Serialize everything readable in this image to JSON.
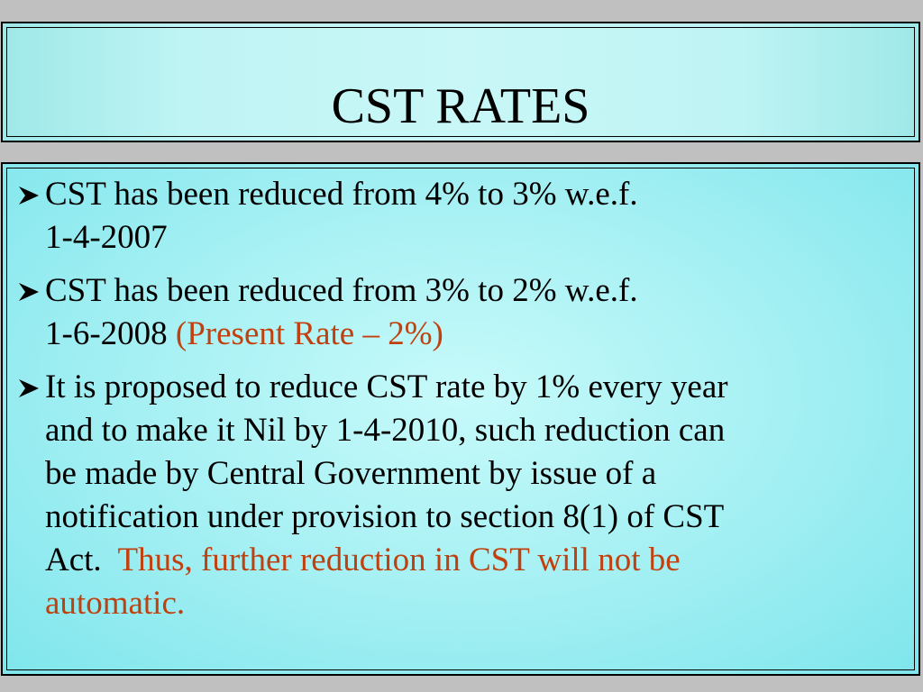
{
  "title": "CST RATES",
  "accent_color": "#c0410f",
  "bullet_icon": "arrow-bullet-icon",
  "bullets": [
    {
      "line1": "CST has been reduced from 4% to 3% w.e.f.",
      "line2": "1-4-2007"
    },
    {
      "line1": "CST has been reduced from 3% to 2% w.e.f.",
      "line2": "1-6-2008",
      "highlight": "(Present Rate – 2%)"
    },
    {
      "lines": [
        "It is proposed to reduce CST rate by 1% every year",
        "and to make it Nil by 1-4-2010, such reduction can",
        "be made by Central Government by issue of a",
        "notification under provision to section 8(1) of CST",
        "Act."
      ],
      "highlight_1": "Thus, further reduction in CST will not be",
      "highlight_2": "automatic."
    }
  ]
}
